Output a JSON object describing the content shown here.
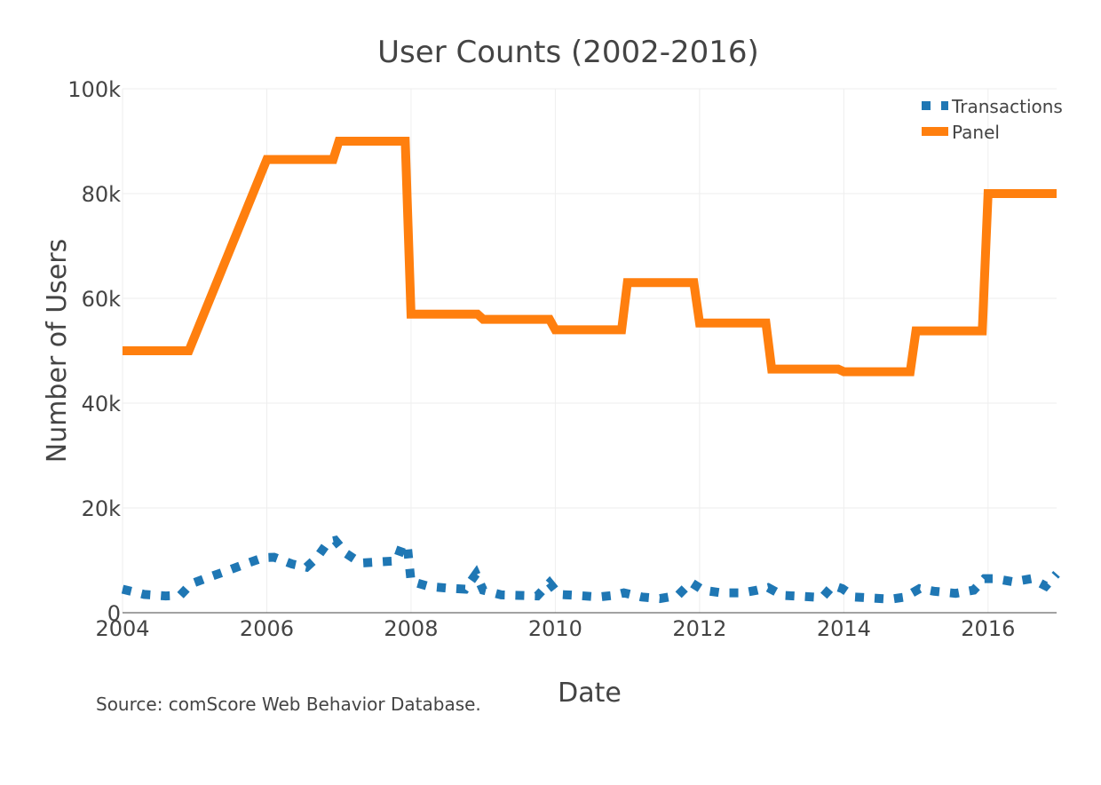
{
  "chart_data": {
    "type": "line",
    "title": "User Counts (2002-2016)",
    "xlabel": "Date",
    "ylabel": "Number of Users",
    "source": "Source: comScore Web Behavior Database.",
    "xlim": [
      2004.0,
      2016.95
    ],
    "ylim": [
      0,
      100000
    ],
    "x_ticks": [
      2004,
      2006,
      2008,
      2010,
      2012,
      2014,
      2016
    ],
    "x_tick_labels": [
      "2004",
      "2006",
      "2008",
      "2010",
      "2012",
      "2014",
      "2016"
    ],
    "y_ticks": [
      0,
      20000,
      40000,
      60000,
      80000,
      100000
    ],
    "y_tick_labels": [
      "0",
      "20k",
      "40k",
      "60k",
      "80k",
      "100k"
    ],
    "grid": true,
    "legend_position": "top-right",
    "series": [
      {
        "name": "Transactions",
        "color": "#1f77b4",
        "dash": "dot",
        "x": [
          2004.0,
          2004.3,
          2004.6,
          2004.8,
          2004.95,
          2005.2,
          2005.45,
          2005.7,
          2005.95,
          2006.1,
          2006.35,
          2006.55,
          2006.7,
          2006.85,
          2006.95,
          2007.1,
          2007.3,
          2007.55,
          2007.8,
          2007.88,
          2007.95,
          2008.0,
          2008.25,
          2008.5,
          2008.75,
          2008.9,
          2009.0,
          2009.25,
          2009.5,
          2009.75,
          2009.92,
          2010.05,
          2010.3,
          2010.6,
          2010.8,
          2010.95,
          2011.2,
          2011.45,
          2011.7,
          2011.88,
          2012.05,
          2012.3,
          2012.6,
          2012.8,
          2012.95,
          2013.15,
          2013.45,
          2013.7,
          2013.85,
          2013.98,
          2014.15,
          2014.4,
          2014.65,
          2014.85,
          2015.05,
          2015.25,
          2015.55,
          2015.8,
          2015.95,
          2016.1,
          2016.35,
          2016.6,
          2016.8,
          2016.95
        ],
        "y": [
          4500,
          3500,
          3200,
          3300,
          5500,
          6800,
          8000,
          9300,
          10500,
          10600,
          9300,
          8700,
          10600,
          13500,
          13800,
          11300,
          9500,
          9700,
          9900,
          13000,
          12500,
          6000,
          5000,
          4700,
          4500,
          7400,
          4300,
          3400,
          3300,
          3200,
          5700,
          3500,
          3300,
          3000,
          3300,
          3800,
          3000,
          2700,
          3300,
          5800,
          4300,
          3800,
          3800,
          4300,
          4800,
          3300,
          3100,
          2900,
          5200,
          4600,
          3000,
          2800,
          2600,
          3000,
          4600,
          4100,
          3700,
          4300,
          6500,
          6500,
          5900,
          6500,
          5100,
          7400
        ]
      },
      {
        "name": "Panel",
        "color": "#ff7f0e",
        "dash": "solid",
        "x": [
          2004.0,
          2004.92,
          2006.0,
          2006.92,
          2007.0,
          2007.92,
          2008.0,
          2008.92,
          2009.0,
          2009.92,
          2010.0,
          2010.92,
          2011.0,
          2011.92,
          2012.0,
          2012.92,
          2013.0,
          2013.92,
          2014.0,
          2014.92,
          2015.0,
          2015.92,
          2016.0,
          2016.95
        ],
        "y": [
          50000,
          50000,
          86500,
          86500,
          90000,
          90000,
          57000,
          57000,
          56000,
          56000,
          54000,
          54000,
          63000,
          63000,
          55300,
          55300,
          46500,
          46500,
          46000,
          46000,
          53800,
          53800,
          80000,
          80000
        ]
      }
    ]
  }
}
